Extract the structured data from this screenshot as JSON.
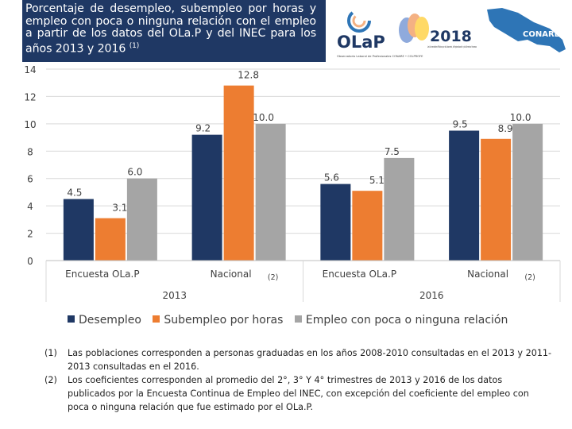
{
  "title_text": "Porcentaje de desempleo, subempleo por horas y empleo con poca o ninguna relación con el empleo a partir de los datos del OLa.P y del INEC para los años 2013 y 2016",
  "title_mark": "(1)",
  "logos": {
    "olap_name": "OLaP",
    "olap_caption": "Observatorio Laboral de Profesionales CONARE • COLPROFE",
    "year": "2018",
    "year_caption": "Las Universidades Públicas por la Autonomía, la Regionalización y los Derechos Humanos",
    "conare": "CONARE"
  },
  "colors": {
    "header_bg": "#1f3864",
    "desempleo": "#1f3864",
    "subempleo": "#ed7d31",
    "empleo_poca": "#a5a5a5"
  },
  "chart_data": {
    "type": "bar",
    "ylim": [
      0,
      14
    ],
    "yticks": [
      0,
      2,
      4,
      6,
      8,
      10,
      12,
      14
    ],
    "groups": [
      {
        "year": "2013",
        "categories": [
          {
            "label": "Encuesta OLa.P",
            "mark": "",
            "values": [
              4.5,
              3.1,
              6.0
            ],
            "labels": [
              "4.5",
              "3.1",
              "6.0"
            ]
          },
          {
            "label": "Nacional",
            "mark": "(2)",
            "values": [
              9.2,
              12.8,
              10.0
            ],
            "labels": [
              "9.2",
              "12.8",
              "10.0"
            ]
          }
        ]
      },
      {
        "year": "2016",
        "categories": [
          {
            "label": "Encuesta OLa.P",
            "mark": "",
            "values": [
              5.6,
              5.1,
              7.5
            ],
            "labels": [
              "5.6",
              "5.1",
              "7.5"
            ]
          },
          {
            "label": "Nacional",
            "mark": "(2)",
            "values": [
              9.5,
              8.9,
              10.0
            ],
            "labels": [
              "9.5",
              "8.9",
              "10.0"
            ]
          }
        ]
      }
    ],
    "series": [
      {
        "name": "Desempleo",
        "color": "#1f3864"
      },
      {
        "name": "Subempleo por horas",
        "color": "#ed7d31"
      },
      {
        "name": "Empleo con poca o ninguna relación",
        "color": "#a5a5a5"
      }
    ]
  },
  "notes": [
    {
      "num": "(1)",
      "text": "Las poblaciones corresponden a personas graduadas en los años 2008-2010 consultadas en el 2013 y 2011-2013 consultadas en el 2016."
    },
    {
      "num": "(2)",
      "text": "Los coeficientes corresponden al promedio del 2°, 3° Y 4° trimestres de 2013 y 2016 de los datos publicados por la Encuesta Continua de Empleo del INEC, con excepción del coeficiente del empleo con poca o ninguna relación que fue estimado por el OLa.P."
    }
  ]
}
